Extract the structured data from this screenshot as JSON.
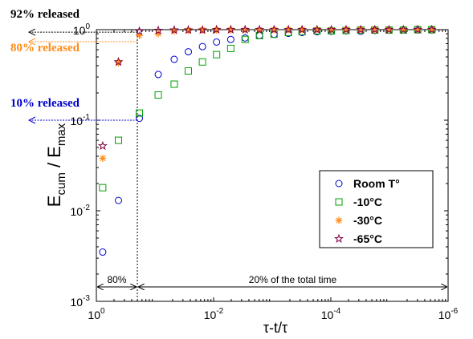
{
  "chart_data": {
    "type": "scatter",
    "xscale": "log",
    "yscale": "log",
    "x_reversed": true,
    "xlim": [
      1,
      1e-06
    ],
    "ylim": [
      0.001,
      1
    ],
    "xticks": [
      {
        "value": 1,
        "base": "10",
        "exp": "0"
      },
      {
        "value": 0.01,
        "base": "10",
        "exp": "-2"
      },
      {
        "value": 0.0001,
        "base": "10",
        "exp": "-4"
      },
      {
        "value": 1e-06,
        "base": "10",
        "exp": "-6"
      }
    ],
    "yticks": [
      {
        "value": 0.001,
        "base": "10",
        "exp": "-3"
      },
      {
        "value": 0.01,
        "base": "10",
        "exp": "-2"
      },
      {
        "value": 0.1,
        "base": "10",
        "exp": "-1"
      },
      {
        "value": 1,
        "base": "10",
        "exp": "0"
      }
    ],
    "xlabel": "τ-t/τ",
    "ylabel": {
      "main": "E",
      "sub1": "cum",
      "mid": " / E",
      "sub2": "max"
    },
    "legend_position": "center-right",
    "grid": false,
    "series": [
      {
        "name": "Room T°",
        "marker": "circle",
        "color": "#0000cc",
        "points": [
          [
            0.78,
            0.0035
          ],
          [
            0.42,
            0.013
          ],
          [
            0.185,
            0.105
          ],
          [
            0.088,
            0.32
          ],
          [
            0.047,
            0.47
          ],
          [
            0.027,
            0.57
          ],
          [
            0.0155,
            0.65
          ],
          [
            0.0089,
            0.73
          ],
          [
            0.0051,
            0.78
          ],
          [
            0.0029,
            0.81
          ],
          [
            0.00165,
            0.86
          ],
          [
            0.00093,
            0.89
          ],
          [
            0.00053,
            0.91
          ],
          [
            0.00031,
            0.93
          ],
          [
            0.000172,
            0.95
          ],
          [
            9.8e-05,
            0.96
          ],
          [
            5.5e-05,
            0.97
          ],
          [
            3.1e-05,
            0.96
          ],
          [
            1.78e-05,
            0.98
          ],
          [
            1.02e-05,
            0.985
          ],
          [
            5.8e-06,
            0.99
          ],
          [
            3.3e-06,
            0.99
          ],
          [
            1.9e-06,
            0.99
          ]
        ]
      },
      {
        "name": "-10°C",
        "marker": "square",
        "color": "#00a000",
        "points": [
          [
            0.78,
            0.018
          ],
          [
            0.42,
            0.06
          ],
          [
            0.185,
            0.12
          ],
          [
            0.088,
            0.19
          ],
          [
            0.047,
            0.25
          ],
          [
            0.027,
            0.35
          ],
          [
            0.0155,
            0.44
          ],
          [
            0.0089,
            0.53
          ],
          [
            0.0051,
            0.62
          ],
          [
            0.0029,
            0.78
          ],
          [
            0.00165,
            0.86
          ],
          [
            0.00093,
            0.89
          ],
          [
            0.00053,
            0.93
          ],
          [
            0.00031,
            0.95
          ],
          [
            0.000172,
            0.97
          ],
          [
            9.8e-05,
            0.97
          ],
          [
            5.5e-05,
            0.98
          ],
          [
            3.1e-05,
            0.99
          ],
          [
            1.78e-05,
            0.99
          ],
          [
            1.02e-05,
            0.99
          ],
          [
            5.8e-06,
            0.99
          ],
          [
            3.3e-06,
            1
          ],
          [
            1.9e-06,
            1
          ]
        ]
      },
      {
        "name": "-30°C",
        "marker": "asterisk",
        "color": "#ff8c1a",
        "points": [
          [
            0.78,
            0.038
          ],
          [
            0.42,
            0.43
          ],
          [
            0.185,
            0.86
          ],
          [
            0.088,
            0.9
          ],
          [
            0.047,
            0.96
          ],
          [
            0.027,
            0.98
          ],
          [
            0.0155,
            0.99
          ],
          [
            0.0089,
            0.99
          ],
          [
            0.0051,
            0.99
          ],
          [
            0.0029,
            0.99
          ],
          [
            0.00165,
            1
          ],
          [
            0.00093,
            1
          ],
          [
            0.00053,
            1
          ],
          [
            0.00031,
            1
          ],
          [
            0.000172,
            1
          ],
          [
            9.8e-05,
            1
          ],
          [
            5.5e-05,
            1
          ],
          [
            3.1e-05,
            1
          ],
          [
            1.78e-05,
            1
          ],
          [
            1.02e-05,
            1
          ],
          [
            5.8e-06,
            1
          ],
          [
            3.3e-06,
            1
          ],
          [
            1.9e-06,
            1
          ]
        ]
      },
      {
        "name": "-65°C",
        "marker": "star",
        "color": "#800040",
        "points": [
          [
            0.78,
            0.052
          ],
          [
            0.42,
            0.44
          ],
          [
            0.185,
            0.96
          ],
          [
            0.088,
            0.98
          ],
          [
            0.047,
            0.99
          ],
          [
            0.027,
            0.99
          ],
          [
            0.0155,
            0.99
          ],
          [
            0.0089,
            1
          ],
          [
            0.0051,
            1
          ],
          [
            0.0029,
            1
          ],
          [
            0.00165,
            1
          ],
          [
            0.00093,
            1
          ],
          [
            0.00053,
            1
          ],
          [
            0.00031,
            1
          ],
          [
            0.000172,
            1
          ],
          [
            9.8e-05,
            1
          ],
          [
            5.5e-05,
            1
          ],
          [
            3.1e-05,
            1
          ],
          [
            1.78e-05,
            1
          ],
          [
            1.02e-05,
            1
          ],
          [
            5.8e-06,
            1
          ],
          [
            3.3e-06,
            1
          ],
          [
            1.9e-06,
            1
          ]
        ]
      }
    ],
    "annotations": [
      {
        "text": "92% released",
        "color": "#000000",
        "y": 0.92
      },
      {
        "text": "80% released",
        "color": "#ff8c1a",
        "y": 0.8
      },
      {
        "text": "10% released",
        "color": "#0000cc",
        "y": 0.1
      }
    ],
    "vline_x": 0.2,
    "spans": [
      {
        "text": "80%",
        "from": 1,
        "to": 0.2
      },
      {
        "text": "20% of the total time",
        "from": 0.2,
        "to": 1e-06
      }
    ]
  }
}
